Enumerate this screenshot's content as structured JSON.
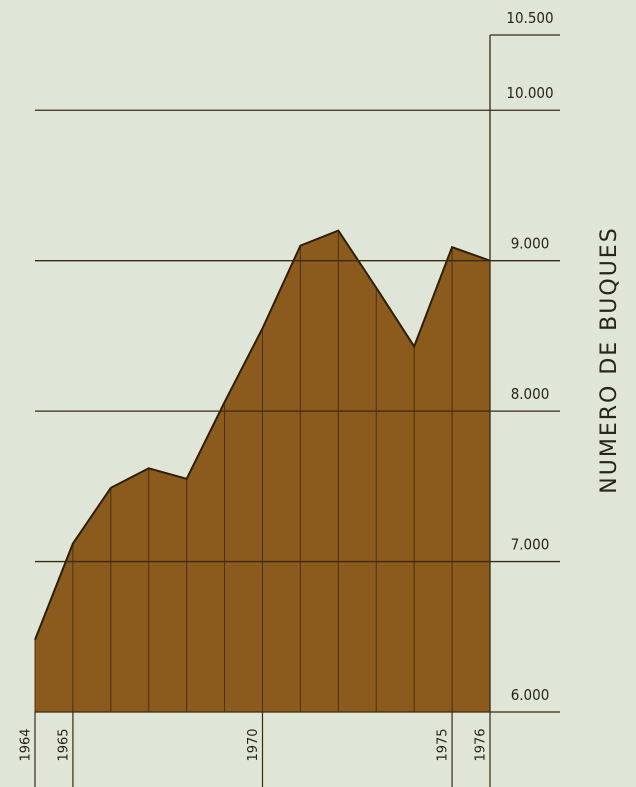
{
  "chart_data": {
    "type": "area",
    "y_axis_label": "NUMERO DE BUQUES",
    "x": [
      1964,
      1965,
      1966,
      1967,
      1968,
      1969,
      1970,
      1971,
      1972,
      1973,
      1974,
      1975,
      1976
    ],
    "values": [
      6480,
      7120,
      7490,
      7620,
      7550,
      8060,
      8550,
      9100,
      9200,
      8820,
      8430,
      9090,
      9000
    ],
    "color": "#8a5b1c",
    "xlim": [
      1964,
      1976
    ],
    "xticks": [
      1964,
      1965,
      1970,
      1975,
      1976
    ],
    "ylim": [
      6000,
      10500
    ],
    "yticks": [
      {
        "value": 6000,
        "label": "6.000"
      },
      {
        "value": 7000,
        "label": "7.000"
      },
      {
        "value": 8000,
        "label": "8.000"
      },
      {
        "value": 9000,
        "label": "9.000"
      },
      {
        "value": 10000,
        "label": "10.000"
      },
      {
        "value": 10500,
        "label": "10.500"
      }
    ],
    "y_axis_side": "right",
    "grid": true
  }
}
